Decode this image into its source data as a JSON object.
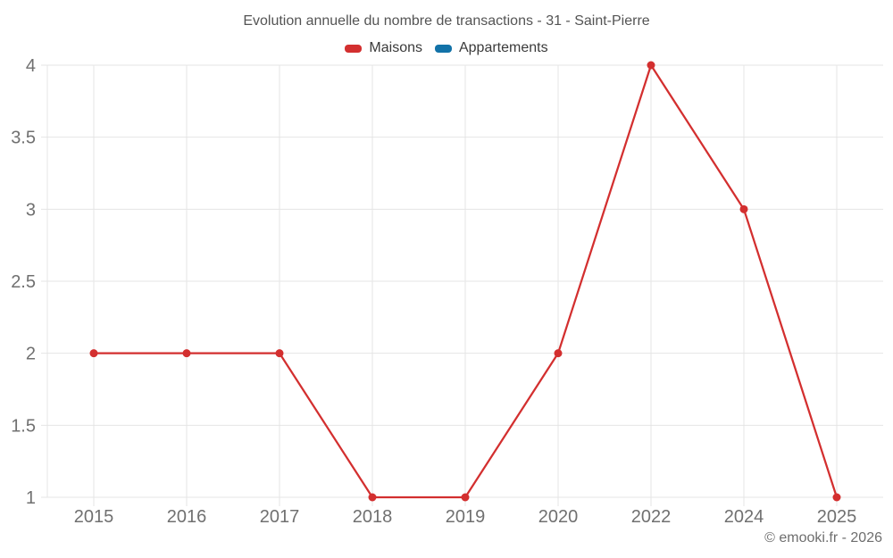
{
  "legend": {
    "items": [
      {
        "label": "Maisons",
        "color": "#d32f2f"
      },
      {
        "label": "Appartements",
        "color": "#1272a8"
      }
    ]
  },
  "footer": {
    "credit": "© emooki.fr - 2026"
  },
  "colors": {
    "grid": "#e5e5e5",
    "tick_label": "#707070",
    "title_text": "#545454",
    "maisons": "#d32f2f",
    "appartements": "#1272a8"
  },
  "chart_data": {
    "type": "line",
    "title": "Evolution annuelle du nombre de transactions - 31 - Saint-Pierre",
    "categories": [
      "2015",
      "2016",
      "2017",
      "2018",
      "2019",
      "2020",
      "2022",
      "2024",
      "2025"
    ],
    "series": [
      {
        "name": "Maisons",
        "color": "#d32f2f",
        "values": [
          2,
          2,
          2,
          1,
          1,
          2,
          4,
          3,
          1
        ]
      },
      {
        "name": "Appartements",
        "color": "#1272a8",
        "values": []
      }
    ],
    "xlabel": "",
    "ylabel": "",
    "ylim": [
      1,
      4
    ],
    "yticks": [
      1,
      1.5,
      2,
      2.5,
      3,
      3.5,
      4
    ],
    "grid": true,
    "legend_position": "top"
  }
}
